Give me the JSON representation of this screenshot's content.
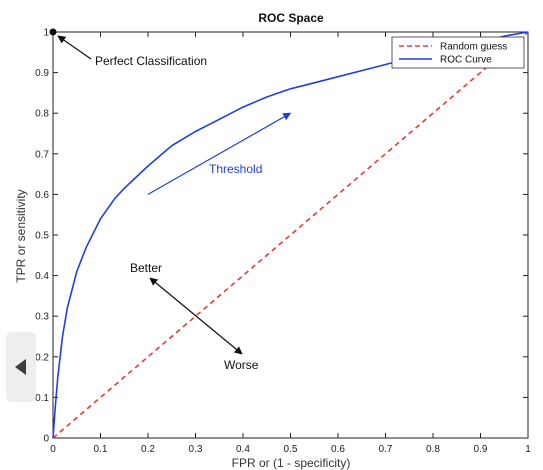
{
  "chart_data": {
    "type": "line",
    "title": "ROC Space",
    "xlabel": "FPR or (1 - specificity)",
    "ylabel": "TPR or sensitivity",
    "xlim": [
      0,
      1
    ],
    "ylim": [
      0,
      1
    ],
    "xticks": [
      "0",
      "0.1",
      "0.2",
      "0.3",
      "0.4",
      "0.5",
      "0.6",
      "0.7",
      "0.8",
      "0.9",
      "1"
    ],
    "yticks": [
      "0",
      "0.1",
      "0.2",
      "0.3",
      "0.4",
      "0.5",
      "0.6",
      "0.7",
      "0.8",
      "0.9",
      "1"
    ],
    "grid": false,
    "legend_position": "top-right",
    "series": [
      {
        "name": "Random guess",
        "color": "#e53935",
        "style": "dashed",
        "x": [
          0,
          1
        ],
        "y": [
          0,
          1
        ]
      },
      {
        "name": "ROC Curve",
        "color": "#1f3fe0",
        "style": "solid",
        "x": [
          0,
          0.005,
          0.01,
          0.02,
          0.03,
          0.05,
          0.07,
          0.1,
          0.13,
          0.15,
          0.2,
          0.25,
          0.3,
          0.35,
          0.4,
          0.45,
          0.5,
          0.55,
          0.6,
          0.65,
          0.7,
          0.75,
          0.8,
          0.85,
          0.9,
          0.95,
          1.0
        ],
        "y": [
          0,
          0.08,
          0.15,
          0.25,
          0.32,
          0.41,
          0.47,
          0.54,
          0.59,
          0.615,
          0.67,
          0.72,
          0.755,
          0.785,
          0.815,
          0.84,
          0.86,
          0.875,
          0.89,
          0.905,
          0.92,
          0.935,
          0.95,
          0.965,
          0.975,
          0.99,
          1.0
        ]
      }
    ],
    "annotations": {
      "perfect_point": {
        "x": 0,
        "y": 1,
        "label": "Perfect Classification"
      },
      "threshold": {
        "label": "Threshold",
        "from": [
          0.2,
          0.6
        ],
        "to": [
          0.5,
          0.8
        ]
      },
      "better": {
        "label": "Better"
      },
      "worse": {
        "label": "Worse"
      }
    }
  },
  "nav": {
    "prev_icon": "chevron-left-icon"
  }
}
